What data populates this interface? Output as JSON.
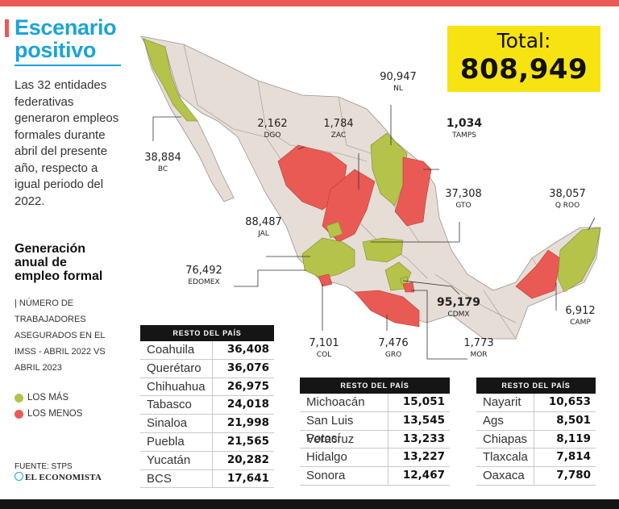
{
  "title": "Escenario positivo",
  "title_lines": [
    "Escenario",
    "positivo"
  ],
  "intro": "Las 32 entidades federativas generaron empleos formales durante abril del presente año, respecto a igual periodo del 2022.",
  "subtitle_lines": [
    "Generación",
    "anual de",
    "empleo formal"
  ],
  "description": "| NÚMERO DE TRABAJADORES ASEGURADOS EN EL IMSS - ABRIL 2022 VS ABRIL 2023",
  "legend": [
    {
      "label": "LOS MÁS",
      "color": "#b5c34a"
    },
    {
      "label": "LOS MENOS",
      "color": "#ea5a54"
    }
  ],
  "source": "FUENTE: STPS",
  "brand": "EL ECONOMISTA",
  "total": {
    "label": "Total:",
    "value": "808,949"
  },
  "colors": {
    "accent": "#1aa3d8",
    "red": "#ea5a54",
    "green": "#b5c34a",
    "land": "#e6ddd6",
    "yellow": "#f7e312"
  },
  "callouts": [
    {
      "abbr": "BC",
      "value": "38,884",
      "status": "mas"
    },
    {
      "abbr": "DGO",
      "value": "2,162",
      "status": "menos"
    },
    {
      "abbr": "ZAC",
      "value": "1,784",
      "status": "menos"
    },
    {
      "abbr": "NL",
      "value": "90,947",
      "status": "mas"
    },
    {
      "abbr": "TAMPS",
      "value": "1,034",
      "status": "menos"
    },
    {
      "abbr": "GTO",
      "value": "37,308",
      "status": "mas"
    },
    {
      "abbr": "Q ROO",
      "value": "38,057",
      "status": "mas"
    },
    {
      "abbr": "JAL",
      "value": "88,487",
      "status": "mas"
    },
    {
      "abbr": "EDOMEX",
      "value": "76,492",
      "status": "mas"
    },
    {
      "abbr": "CDMX",
      "value": "95,179",
      "status": "mas"
    },
    {
      "abbr": "CAMP",
      "value": "6,912",
      "status": "menos"
    },
    {
      "abbr": "COL",
      "value": "7,101",
      "status": "menos"
    },
    {
      "abbr": "GRO",
      "value": "7,476",
      "status": "menos"
    },
    {
      "abbr": "MOR",
      "value": "1,773",
      "status": "menos"
    }
  ],
  "tables": [
    {
      "header": "RESTO DEL PAÍS",
      "rows": [
        {
          "state": "Coahuila",
          "value": "36,408"
        },
        {
          "state": "Querétaro",
          "value": "36,076"
        },
        {
          "state": "Chihuahua",
          "value": "26,975"
        },
        {
          "state": "Tabasco",
          "value": "24,018"
        },
        {
          "state": "Sinaloa",
          "value": "21,998"
        },
        {
          "state": "Puebla",
          "value": "21,565"
        },
        {
          "state": "Yucatán",
          "value": "20,282"
        },
        {
          "state": "BCS",
          "value": "17,641"
        }
      ]
    },
    {
      "header": "RESTO DEL PAÍS",
      "rows": [
        {
          "state": "Michoacán",
          "value": "15,051"
        },
        {
          "state": "San Luis Potosí",
          "value": "13,545"
        },
        {
          "state": "Veracruz",
          "value": "13,233"
        },
        {
          "state": "Hidalgo",
          "value": "13,227"
        },
        {
          "state": "Sonora",
          "value": "12,467"
        }
      ]
    },
    {
      "header": "RESTO DEL PAÍS",
      "rows": [
        {
          "state": "Nayarit",
          "value": "10,653"
        },
        {
          "state": "Ags",
          "value": "8,501"
        },
        {
          "state": "Chiapas",
          "value": "8,119"
        },
        {
          "state": "Tlaxcala",
          "value": "7,814"
        },
        {
          "state": "Oaxaca",
          "value": "7,780"
        }
      ]
    }
  ]
}
